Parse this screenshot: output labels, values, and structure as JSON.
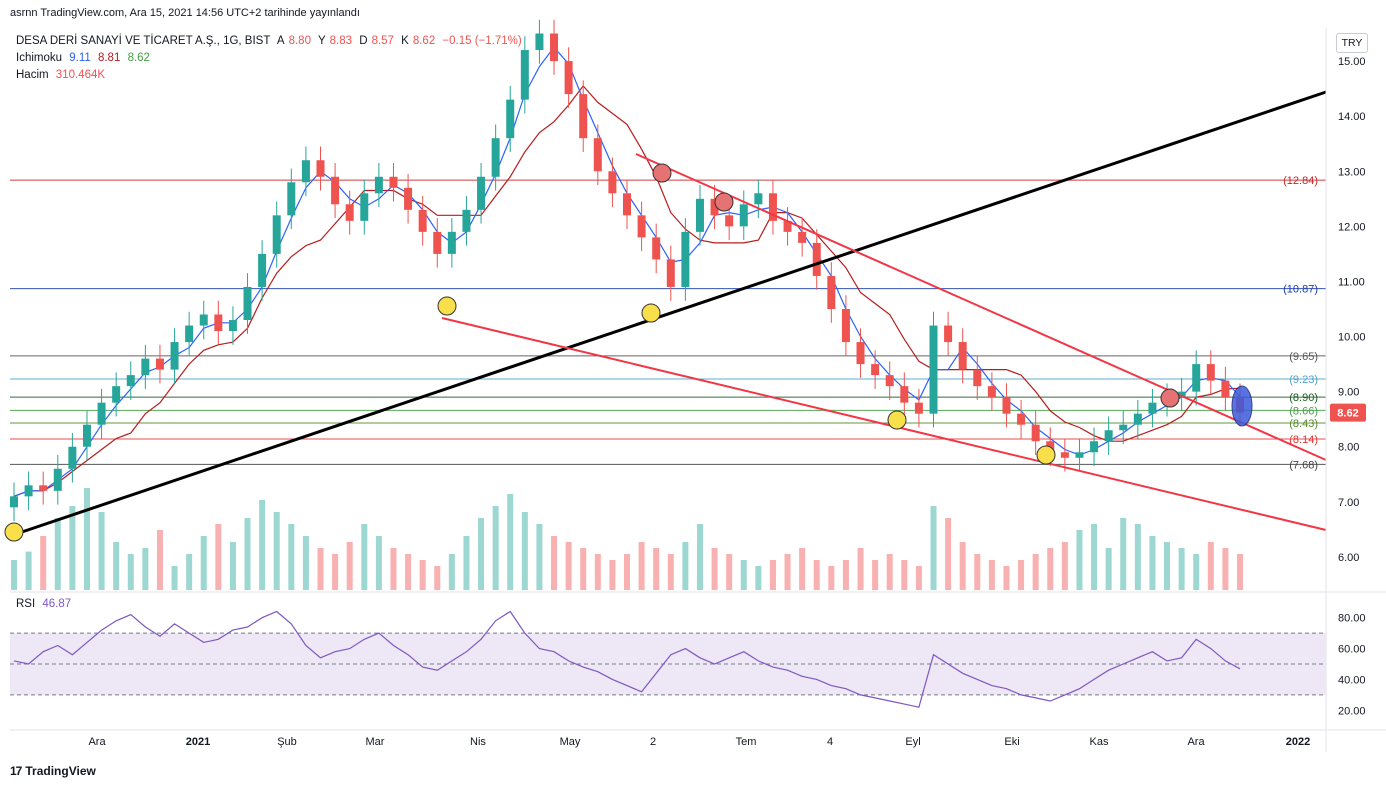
{
  "header": {
    "text": "asrnn TradingView.com, Ara 15, 2021 14:56 UTC+2 tarihinde yayınlandı"
  },
  "legend": {
    "symbol": "DESA DERİ SANAYİ VE TİCARET A.Ş., 1G, BIST",
    "ohlc": {
      "a_label": "A",
      "a": "8.80",
      "y_label": "Y",
      "y": "8.83",
      "d_label": "D",
      "d": "8.57",
      "k_label": "K",
      "k": "8.62",
      "change": "−0.15 (−1.71%)"
    },
    "ichimoku": {
      "label": "Ichimoku",
      "v1": "9.11",
      "v2": "8.81",
      "v3": "8.62"
    },
    "volume": {
      "label": "Hacim",
      "value": "310.464K"
    },
    "rsi": {
      "label": "RSI",
      "value": "46.87"
    }
  },
  "currency": "TRY",
  "last_price": "8.62",
  "footer": {
    "brand": "TradingView"
  },
  "colors": {
    "up": "#26a69a",
    "down": "#ef5350",
    "tenkan": "#2962ff",
    "kijun": "#b71c1c",
    "trend_red": "#f23645",
    "trend_black": "#000000",
    "rsi_line": "#7e57c2",
    "rsi_band": "#ede7f6"
  },
  "chart_data": {
    "type": "candlestick",
    "y_axis_ticks": [
      "15.00",
      "14.00",
      "13.00",
      "12.00",
      "11.00",
      "10.00",
      "9.00",
      "8.00",
      "7.00",
      "6.00"
    ],
    "ylim": [
      5.4,
      15.6
    ],
    "x_axis_ticks": [
      "Ara",
      "2021",
      "Şub",
      "Mar",
      "Nis",
      "May",
      "2",
      "Tem",
      "4",
      "Eyl",
      "Eki",
      "Kas",
      "Ara",
      "2022"
    ],
    "levels": [
      {
        "label": "(12.84)",
        "value": 12.84,
        "color": "#c62828"
      },
      {
        "label": "(10.87)",
        "value": 10.87,
        "color": "#1e40af"
      },
      {
        "label": "(9.65)",
        "value": 9.65,
        "color": "#555555"
      },
      {
        "label": "(9.23)",
        "value": 9.23,
        "color": "#4fa3c7"
      },
      {
        "label": "(8.90)",
        "value": 8.9,
        "color": "#1b5e20"
      },
      {
        "label": "(8.66)",
        "value": 8.66,
        "color": "#43a047"
      },
      {
        "label": "(8.43)",
        "value": 8.43,
        "color": "#558b2f"
      },
      {
        "label": "(8.14)",
        "value": 8.14,
        "color": "#e53935"
      },
      {
        "label": "(7.68)",
        "value": 7.68,
        "color": "#444444"
      }
    ],
    "close_series": [
      7.1,
      7.3,
      7.2,
      7.6,
      8.0,
      8.4,
      8.8,
      9.1,
      9.3,
      9.6,
      9.4,
      9.9,
      10.2,
      10.4,
      10.1,
      10.3,
      10.9,
      11.5,
      12.2,
      12.8,
      13.2,
      12.9,
      12.4,
      12.1,
      12.6,
      12.9,
      12.7,
      12.3,
      11.9,
      11.5,
      11.9,
      12.3,
      12.9,
      13.6,
      14.3,
      15.2,
      15.5,
      15.0,
      14.4,
      13.6,
      13.0,
      12.6,
      12.2,
      11.8,
      11.4,
      10.9,
      11.9,
      12.5,
      12.2,
      12.0,
      12.4,
      12.6,
      12.1,
      11.9,
      11.7,
      11.1,
      10.5,
      9.9,
      9.5,
      9.3,
      9.1,
      8.8,
      8.6,
      10.2,
      9.9,
      9.4,
      9.1,
      8.9,
      8.6,
      8.4,
      8.1,
      7.9,
      7.8,
      7.9,
      8.1,
      8.3,
      8.4,
      8.6,
      8.8,
      8.9,
      9.0,
      9.5,
      9.2,
      8.9,
      8.62
    ],
    "volume_series": [
      25,
      32,
      45,
      60,
      70,
      85,
      65,
      40,
      30,
      35,
      50,
      20,
      30,
      45,
      55,
      40,
      60,
      75,
      65,
      55,
      45,
      35,
      30,
      40,
      55,
      45,
      35,
      30,
      25,
      20,
      30,
      45,
      60,
      70,
      80,
      65,
      55,
      45,
      40,
      35,
      30,
      25,
      30,
      40,
      35,
      30,
      40,
      55,
      35,
      30,
      25,
      20,
      25,
      30,
      35,
      25,
      20,
      25,
      35,
      25,
      30,
      25,
      20,
      70,
      60,
      40,
      30,
      25,
      20,
      25,
      30,
      35,
      40,
      50,
      55,
      35,
      60,
      55,
      45,
      40,
      35,
      30,
      40,
      35,
      30
    ],
    "rsi_series": [
      52,
      50,
      58,
      62,
      56,
      64,
      72,
      78,
      82,
      74,
      68,
      76,
      70,
      64,
      66,
      72,
      74,
      80,
      84,
      76,
      62,
      54,
      58,
      60,
      66,
      70,
      62,
      56,
      48,
      46,
      52,
      58,
      66,
      78,
      84,
      70,
      60,
      58,
      52,
      48,
      45,
      40,
      36,
      32,
      44,
      56,
      60,
      54,
      50,
      54,
      58,
      52,
      48,
      46,
      42,
      40,
      36,
      34,
      30,
      28,
      26,
      24,
      22,
      56,
      50,
      44,
      40,
      36,
      34,
      30,
      28,
      26,
      30,
      34,
      40,
      46,
      50,
      54,
      58,
      52,
      54,
      66,
      60,
      52,
      46.87
    ],
    "rsi_ticks": [
      "80.00",
      "60.00",
      "40.00",
      "20.00"
    ],
    "rsi_levels": [
      70,
      50,
      30
    ]
  }
}
